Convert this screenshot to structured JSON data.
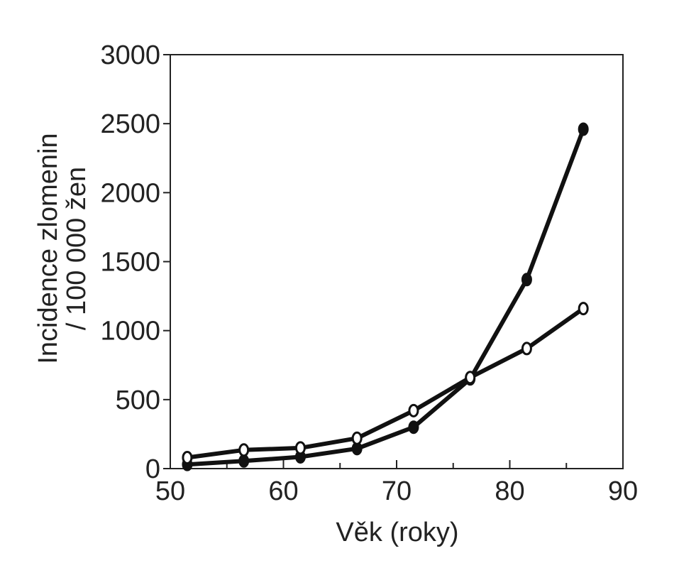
{
  "chart_data": {
    "type": "line",
    "title": "",
    "xlabel": "Věk (roky)",
    "ylabel": [
      "Incidence zlomenin",
      "/ 100 000 žen"
    ],
    "xlim": [
      50,
      90
    ],
    "ylim": [
      0,
      3000
    ],
    "x_ticks": [
      50,
      60,
      70,
      80,
      90
    ],
    "x_minor_ticks": [
      55,
      65,
      75,
      85
    ],
    "y_ticks": [
      0,
      500,
      1000,
      1500,
      2000,
      2500,
      3000
    ],
    "grid": false,
    "legend": "none",
    "series": [
      {
        "marker": "filled",
        "x": [
          51.5,
          56.5,
          61.5,
          66.5,
          71.5,
          76.5,
          81.5,
          86.5
        ],
        "y": [
          30,
          55,
          85,
          145,
          300,
          650,
          1370,
          2460
        ]
      },
      {
        "marker": "open",
        "x": [
          51.5,
          56.5,
          61.5,
          66.5,
          71.5,
          76.5,
          81.5,
          86.5
        ],
        "y": [
          80,
          135,
          150,
          220,
          420,
          660,
          870,
          1160
        ]
      }
    ],
    "colors": {
      "line": "#111111",
      "marker_fill_open": "#ffffff",
      "axis": "#222222"
    }
  }
}
